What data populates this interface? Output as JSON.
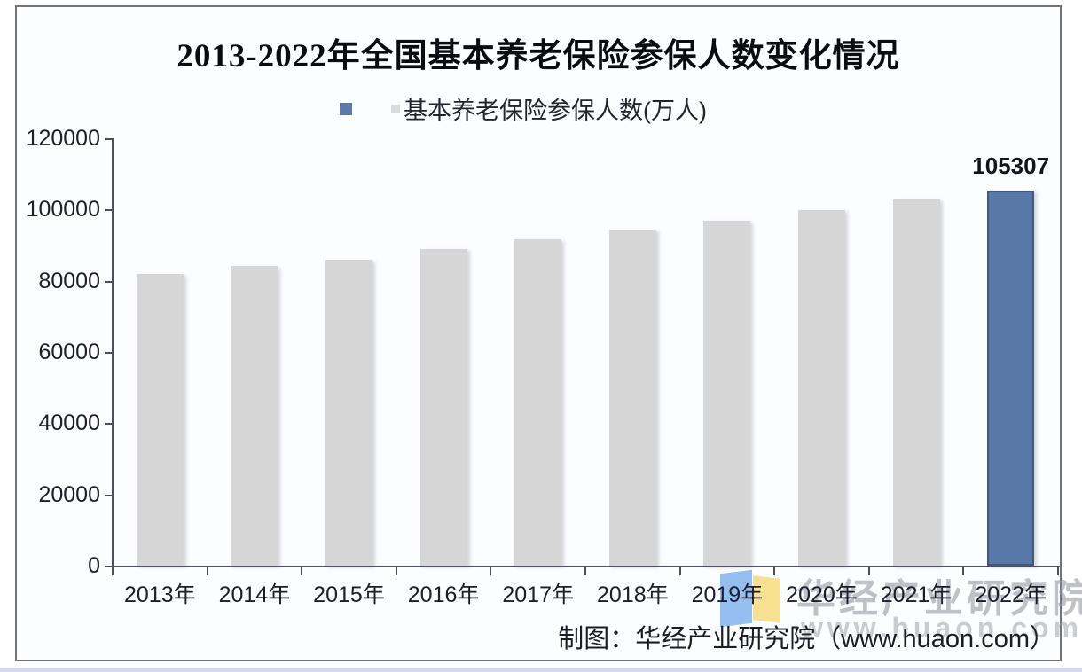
{
  "chart": {
    "title": "2013-2022年全国基本养老保险参保人数变化情况",
    "legend": {
      "label": "基本养老保险参保人数(万人)",
      "highlight_swatch_color": "#5b7aa9",
      "default_swatch_color": "#d9d9d9"
    },
    "bar_color_default": "#d6d6d6",
    "bar_color_highlight": "#5878a8",
    "bar_highlight_border_color": "#3a5a85",
    "annotation_value": "105307"
  },
  "chart_data": {
    "type": "bar",
    "title": "2013-2022年全国基本养老保险参保人数变化情况",
    "legend": [
      "基本养老保险参保人数(万人)"
    ],
    "legend_position": "top-center",
    "categories": [
      "2013年",
      "2014年",
      "2015年",
      "2016年",
      "2017年",
      "2018年",
      "2019年",
      "2020年",
      "2021年",
      "2022年"
    ],
    "values": [
      81968,
      84232,
      85833,
      88777,
      91548,
      94293,
      96754,
      99865,
      102871,
      105307
    ],
    "ylabel": "",
    "xlabel": "",
    "ylim": [
      0,
      120000
    ],
    "yticks": [
      0,
      20000,
      40000,
      60000,
      80000,
      100000,
      120000
    ],
    "grid": false,
    "highlight_category": "2022年",
    "annotation": {
      "category": "2022年",
      "text": "105307"
    }
  },
  "watermark": {
    "brand_text": "华经产业研究院",
    "url_text": "www.huaon.com",
    "logo_colors": {
      "blue": "#84b4ef",
      "yellow": "#f7dd85"
    }
  },
  "caption": "制图：华经产业研究院（www.huaon.com）"
}
